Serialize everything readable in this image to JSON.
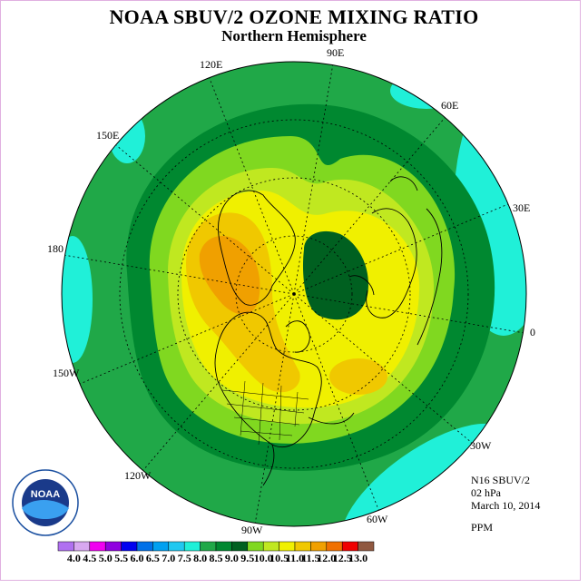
{
  "header": {
    "title": "NOAA SBUV/2 OZONE MIXING RATIO",
    "subtitle": "Northern Hemisphere"
  },
  "longitude_labels": {
    "lon_90e": "90E",
    "lon_120e": "120E",
    "lon_60e": "60E",
    "lon_150e": "150E",
    "lon_30e": "30E",
    "lon_180": "180",
    "lon_0": "0",
    "lon_150w": "150W",
    "lon_30w": "30W",
    "lon_120w": "120W",
    "lon_60w": "60W",
    "lon_90w": "90W"
  },
  "info": {
    "instrument": "N16 SBUV/2",
    "pressure": "02 hPa",
    "date": "March 10, 2014",
    "units": "PPM"
  },
  "logo": {
    "text": "NOAA",
    "ring_text": "NATIONAL OCEANIC AND ATMOSPHERIC ADMINISTRATION · U.S. DEPARTMENT OF COMMERCE"
  },
  "colorbar": {
    "colors": [
      "#b070f0",
      "#d8a8f0",
      "#f000f0",
      "#9000e0",
      "#0000f0",
      "#0070e8",
      "#00a0f0",
      "#20c8f0",
      "#20f0d8",
      "#20a848",
      "#008830",
      "#006020",
      "#80d820",
      "#c0e820",
      "#f0f000",
      "#f0c800",
      "#f0a000",
      "#f07000",
      "#f00000",
      "#905840"
    ],
    "labels": [
      "4.0",
      "4.5",
      "5.0",
      "5.5",
      "6.0",
      "6.5",
      "7.0",
      "7.5",
      "8.0",
      "8.5",
      "9.0",
      "9.5",
      "10.0",
      "10.5",
      "11.0",
      "11.5",
      "12.0",
      "12.5",
      "13.0"
    ]
  }
}
